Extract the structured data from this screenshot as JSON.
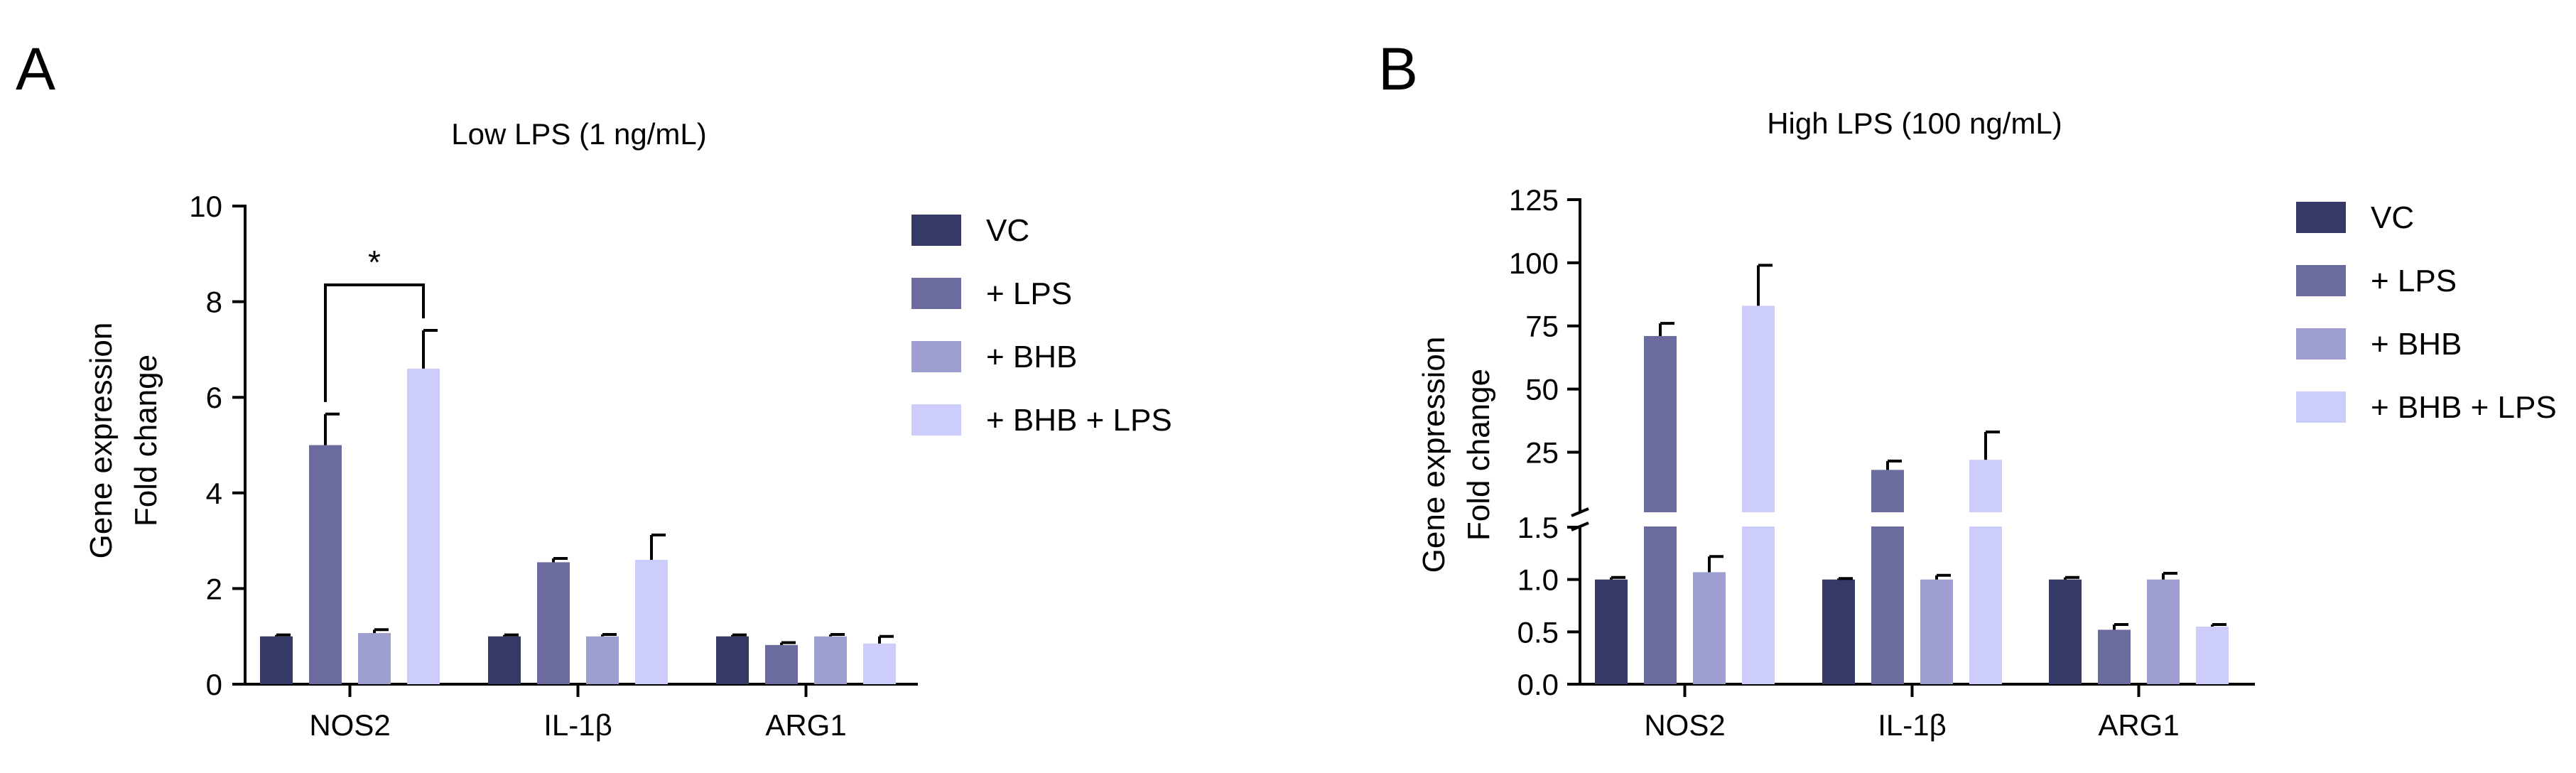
{
  "panel_letters": [
    "A",
    "B"
  ],
  "legend_colors": [
    "#363866",
    "#6b6b9f",
    "#9e9ed0",
    "#cdcdfb"
  ],
  "chart_data": [
    {
      "type": "bar",
      "panel": "A",
      "title": "Low LPS (1 ng/mL)",
      "ylabel": [
        "Gene expression",
        "Fold change"
      ],
      "xlabel": "",
      "categories": [
        "NOS2",
        "IL-1β",
        "ARG1"
      ],
      "ylim": [
        0,
        10
      ],
      "yticks": [
        0,
        2,
        4,
        6,
        8,
        10
      ],
      "ytick_labels": [
        "0",
        "2",
        "4",
        "6",
        "8",
        "10"
      ],
      "series": [
        {
          "name": "VC",
          "values": [
            1.0,
            1.0,
            1.0
          ],
          "errors": [
            0.03,
            0.03,
            0.03
          ]
        },
        {
          "name": "+ LPS",
          "values": [
            5.0,
            2.55,
            0.82
          ],
          "errors": [
            0.65,
            0.08,
            0.05
          ]
        },
        {
          "name": "+ BHB",
          "values": [
            1.07,
            1.0,
            1.0
          ],
          "errors": [
            0.07,
            0.04,
            0.04
          ]
        },
        {
          "name": "+ BHB + LPS",
          "values": [
            6.6,
            2.6,
            0.85
          ],
          "errors": [
            0.8,
            0.52,
            0.15
          ]
        }
      ],
      "annotations": [
        {
          "text": "*",
          "category": "NOS2",
          "from_series": 1,
          "to_series": 3,
          "level": 8.35
        }
      ]
    },
    {
      "type": "bar",
      "panel": "B",
      "title": "High LPS (100 ng/mL)",
      "ylabel": [
        "Gene expression",
        "Fold change"
      ],
      "xlabel": "",
      "categories": [
        "NOS2",
        "IL-1β",
        "ARG1"
      ],
      "axis_break": {
        "lower": [
          0,
          1.5
        ],
        "upper": [
          1.5,
          125
        ]
      },
      "yticks_lower": [
        0.0,
        0.5,
        1.0,
        1.5
      ],
      "ytick_labels_lower": [
        "0.0",
        "0.5",
        "1.0",
        "1.5"
      ],
      "yticks_upper": [
        25,
        50,
        75,
        100,
        125
      ],
      "ytick_labels_upper": [
        "25",
        "50",
        "75",
        "100",
        "125"
      ],
      "series": [
        {
          "name": "VC",
          "values": [
            1.0,
            1.0,
            1.0
          ],
          "errors": [
            0.02,
            0.01,
            0.02
          ]
        },
        {
          "name": "+ LPS",
          "values": [
            71,
            18,
            0.52
          ],
          "errors": [
            5,
            3.5,
            0.05
          ]
        },
        {
          "name": "+ BHB",
          "values": [
            1.07,
            1.0,
            1.0
          ],
          "errors": [
            0.15,
            0.04,
            0.06
          ]
        },
        {
          "name": "+ BHB + LPS",
          "values": [
            83,
            22,
            0.55
          ],
          "errors": [
            16,
            11,
            0.02
          ]
        }
      ]
    }
  ]
}
